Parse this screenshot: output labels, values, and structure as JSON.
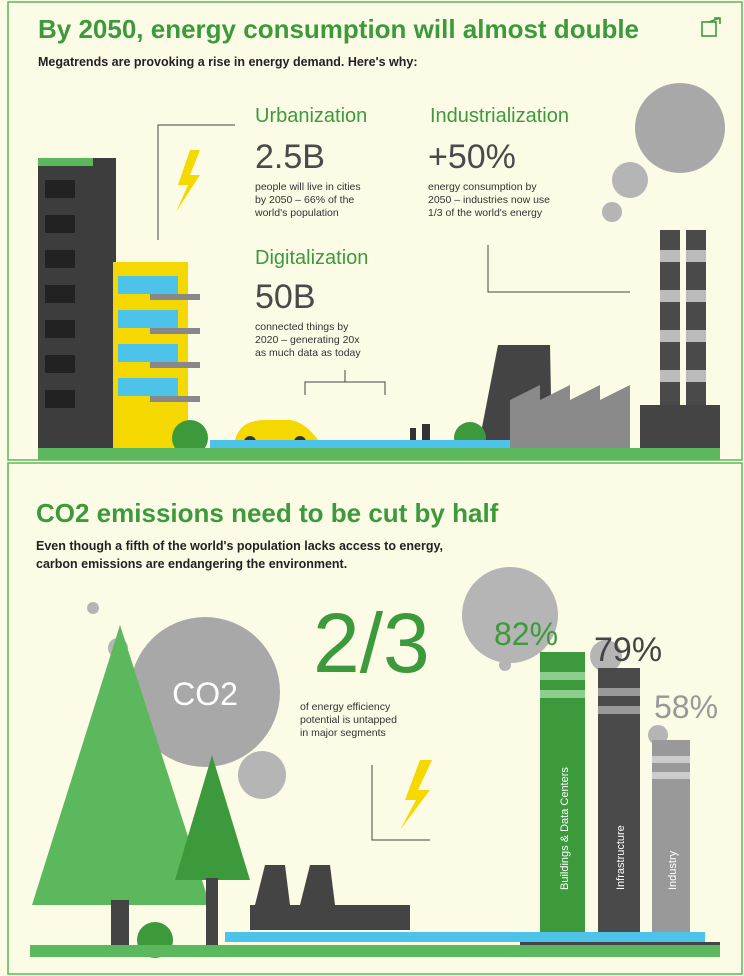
{
  "top": {
    "title": "By 2050, energy consumption will almost double",
    "subtitle": "Megatrends are provoking a rise in energy demand. Here's why:",
    "facts": [
      {
        "heading": "Urbanization",
        "figure": "2.5B",
        "text": [
          "people will live in cities",
          "by 2050 – 66% of the",
          "world's population"
        ]
      },
      {
        "heading": "Industrialization",
        "figure": "+50%",
        "text": [
          "energy consumption by",
          "2050 – industries now use",
          "1/3 of the world's energy"
        ]
      },
      {
        "heading": "Digitalization",
        "figure": "50B",
        "text": [
          "connected things by",
          "2020 – generating 20x",
          "as much data as today"
        ]
      }
    ]
  },
  "bottom": {
    "title": "CO2 emissions need to be cut by half",
    "subtitle": [
      "Even though a fifth of the world's population lacks access to energy,",
      "carbon emissions are endangering the environment."
    ],
    "cloud": "CO2",
    "stat": {
      "figure": "2/3",
      "text": [
        "of energy efficiency",
        "potential is untapped",
        "in major segments"
      ]
    },
    "chimneys": [
      {
        "label": "Buildings & Data Centers",
        "value": "82%"
      },
      {
        "label": "Infrastructure",
        "value": "79%"
      },
      {
        "label": "Industry",
        "value": "58%"
      }
    ]
  }
}
